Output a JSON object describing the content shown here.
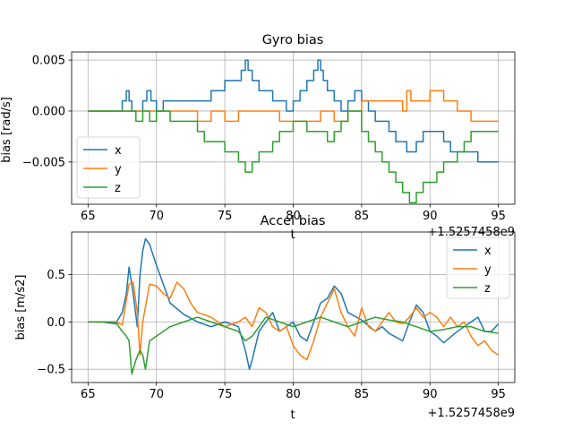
{
  "chart_data": [
    {
      "type": "line",
      "title": "Gyro bias",
      "xlabel": "t",
      "ylabel": "bias [rad/s]",
      "x_offset_label": "+1.5257458e9",
      "xlim": [
        63.8,
        96.2
      ],
      "ylim": [
        -0.00915,
        0.0058
      ],
      "xticks": [
        65,
        70,
        75,
        80,
        85,
        90,
        95
      ],
      "yticks": [
        -0.005,
        0.0,
        0.005
      ],
      "ytick_labels": [
        "−0.005",
        "0.000",
        "0.005"
      ],
      "grid": true,
      "legend_position": "lower-left",
      "series": [
        {
          "name": "x",
          "color": "#1f77b4",
          "step": true,
          "x": [
            65,
            67.5,
            67.8,
            68.0,
            68.2,
            68.6,
            69.0,
            69.3,
            69.6,
            70.0,
            70.5,
            71.0,
            72.0,
            73.0,
            74.0,
            75.0,
            75.8,
            76.2,
            76.5,
            76.7,
            77.0,
            77.5,
            78.0,
            78.5,
            79.0,
            79.5,
            80.0,
            80.5,
            81.0,
            81.5,
            81.8,
            82.0,
            82.2,
            82.5,
            83.0,
            83.5,
            84.0,
            84.5,
            85.0,
            85.5,
            86.0,
            86.5,
            87.0,
            87.5,
            88.0,
            88.3,
            88.6,
            89.0,
            89.5,
            90.0,
            90.5,
            91.0,
            91.5,
            92.0,
            92.5,
            93.0,
            93.5,
            94.0,
            94.5,
            95.0
          ],
          "y": [
            0,
            0.001,
            0.002,
            0.001,
            0,
            0,
            0.001,
            0.002,
            0.001,
            0,
            0.001,
            0.001,
            0.001,
            0.001,
            0.002,
            0.003,
            0.003,
            0.004,
            0.005,
            0.004,
            0.003,
            0.002,
            0.002,
            0.001,
            0.001,
            0,
            0.001,
            0.002,
            0.003,
            0.004,
            0.005,
            0.004,
            0.003,
            0.002,
            0.001,
            0,
            0.001,
            0.002,
            0.001,
            0,
            -0.001,
            -0.001,
            -0.002,
            -0.003,
            -0.003,
            -0.004,
            -0.004,
            -0.003,
            -0.002,
            -0.002,
            -0.002,
            -0.003,
            -0.004,
            -0.004,
            -0.004,
            -0.004,
            -0.005,
            -0.005,
            -0.005,
            -0.005
          ]
        },
        {
          "name": "y",
          "color": "#ff7f0e",
          "step": true,
          "x": [
            65,
            68.0,
            69.0,
            70.0,
            71.0,
            72.0,
            73.0,
            74.0,
            75.0,
            76.0,
            77.0,
            78.0,
            79.0,
            80.0,
            81.0,
            82.0,
            83.0,
            84.0,
            85.0,
            85.5,
            86.0,
            86.5,
            87.0,
            87.5,
            88.0,
            88.3,
            88.6,
            89.0,
            89.5,
            90.0,
            90.5,
            91.0,
            92.0,
            93.0,
            94.0,
            95.0
          ],
          "y": [
            0,
            0,
            0,
            0,
            0,
            0,
            -0.001,
            0,
            -0.001,
            0,
            0,
            0,
            -0.001,
            -0.001,
            -0.001,
            0,
            -0.001,
            0,
            0.001,
            0.001,
            0.001,
            0.001,
            0.001,
            0.001,
            0,
            0.002,
            0.001,
            0.001,
            0.001,
            0.002,
            0.002,
            0.001,
            0,
            -0.001,
            -0.001,
            -0.001
          ]
        },
        {
          "name": "z",
          "color": "#2ca02c",
          "step": true,
          "x": [
            65,
            68.0,
            68.5,
            69.0,
            69.5,
            70.0,
            71.0,
            72.0,
            73.0,
            73.5,
            74.0,
            74.5,
            75.0,
            75.5,
            76.0,
            76.5,
            77.0,
            77.5,
            78.0,
            78.5,
            79.0,
            79.5,
            80.0,
            81.0,
            82.0,
            82.5,
            83.0,
            83.5,
            84.0,
            84.5,
            85.0,
            85.5,
            86.0,
            86.5,
            87.0,
            87.5,
            88.0,
            88.5,
            89.0,
            89.5,
            90.0,
            90.5,
            91.0,
            91.5,
            92.0,
            92.5,
            93.0,
            93.5,
            94.0,
            94.5,
            95.0
          ],
          "y": [
            0,
            0,
            -0.001,
            0,
            -0.001,
            0,
            -0.001,
            -0.001,
            -0.002,
            -0.003,
            -0.003,
            -0.003,
            -0.004,
            -0.004,
            -0.005,
            -0.006,
            -0.005,
            -0.004,
            -0.004,
            -0.003,
            -0.002,
            -0.002,
            -0.001,
            -0.002,
            -0.002,
            -0.003,
            -0.002,
            -0.001,
            0,
            0,
            -0.002,
            -0.003,
            -0.004,
            -0.005,
            -0.006,
            -0.007,
            -0.008,
            -0.009,
            -0.008,
            -0.007,
            -0.007,
            -0.006,
            -0.005,
            -0.005,
            -0.004,
            -0.003,
            -0.002,
            -0.002,
            -0.002,
            -0.002,
            -0.002
          ]
        }
      ]
    },
    {
      "type": "line",
      "title": "Accel bias",
      "xlabel": "t",
      "ylabel": "bias [m/s2]",
      "x_offset_label": "+1.5257458e9",
      "xlim": [
        63.8,
        96.2
      ],
      "ylim": [
        -0.64,
        0.95
      ],
      "xticks": [
        65,
        70,
        75,
        80,
        85,
        90,
        95
      ],
      "yticks": [
        -0.5,
        0.0,
        0.5
      ],
      "ytick_labels": [
        "−0.5",
        "0.0",
        "0.5"
      ],
      "grid": true,
      "legend_position": "upper-right",
      "series": [
        {
          "name": "x",
          "color": "#1f77b4",
          "step": false,
          "x": [
            65,
            66,
            67,
            67.5,
            67.8,
            68.0,
            68.3,
            68.6,
            68.8,
            69.0,
            69.2,
            69.5,
            70.0,
            70.5,
            71.0,
            72.0,
            73.0,
            74.0,
            75.0,
            76.0,
            76.5,
            76.8,
            77.0,
            77.5,
            78.0,
            78.5,
            79.0,
            80.0,
            80.5,
            81.0,
            81.5,
            82.0,
            82.5,
            83.0,
            83.5,
            84.0,
            85.0,
            86.0,
            86.5,
            87.0,
            88.0,
            88.5,
            89.0,
            89.5,
            90.0,
            90.5,
            91.0,
            92.0,
            93.0,
            93.5,
            94.0,
            94.5,
            95.0
          ],
          "y": [
            0,
            0,
            -0.02,
            0.1,
            0.3,
            0.58,
            0.3,
            -0.05,
            0.5,
            0.75,
            0.88,
            0.82,
            0.6,
            0.4,
            0.2,
            0.08,
            0.0,
            -0.05,
            0.0,
            -0.05,
            -0.3,
            -0.5,
            -0.4,
            -0.1,
            0.0,
            0.1,
            -0.1,
            0.0,
            -0.15,
            -0.2,
            0.0,
            0.2,
            0.25,
            0.38,
            0.3,
            0.1,
            0.02,
            -0.1,
            -0.05,
            -0.12,
            -0.2,
            0.0,
            0.18,
            0.1,
            -0.1,
            -0.15,
            -0.22,
            -0.1,
            0.0,
            0.05,
            -0.1,
            -0.1,
            -0.02
          ]
        },
        {
          "name": "y",
          "color": "#ff7f0e",
          "step": false,
          "x": [
            65,
            66,
            67,
            67.5,
            68.0,
            68.3,
            68.6,
            68.8,
            69.0,
            69.5,
            70.0,
            70.5,
            71.0,
            71.5,
            72.0,
            72.5,
            73.0,
            74.0,
            75.0,
            76.0,
            76.5,
            77.0,
            77.5,
            78.0,
            78.5,
            79.0,
            79.5,
            80.0,
            80.5,
            81.0,
            81.5,
            82.0,
            82.5,
            83.0,
            83.5,
            84.0,
            84.5,
            85.0,
            85.5,
            86.0,
            86.5,
            87.0,
            87.5,
            88.0,
            88.5,
            89.0,
            89.5,
            90.0,
            90.5,
            91.0,
            91.5,
            92.0,
            92.5,
            93.0,
            93.5,
            94.0,
            94.5,
            95.0
          ],
          "y": [
            0,
            0,
            0.0,
            -0.03,
            0.4,
            0.42,
            0.1,
            -0.35,
            0.0,
            0.4,
            0.38,
            0.3,
            0.25,
            0.42,
            0.35,
            0.2,
            0.1,
            0.05,
            -0.05,
            0.0,
            0.05,
            -0.05,
            0.15,
            0.1,
            -0.05,
            -0.1,
            -0.05,
            -0.25,
            -0.35,
            -0.4,
            -0.2,
            0.05,
            0.2,
            0.35,
            0.1,
            -0.05,
            -0.15,
            0.15,
            -0.05,
            -0.1,
            0.0,
            0.1,
            0.0,
            -0.02,
            0.05,
            0.15,
            0.05,
            0.1,
            0.05,
            -0.05,
            0.05,
            -0.05,
            0.0,
            -0.15,
            -0.25,
            -0.2,
            -0.3,
            -0.35
          ]
        },
        {
          "name": "z",
          "color": "#2ca02c",
          "step": false,
          "x": [
            65,
            66,
            67,
            67.5,
            67.8,
            68.0,
            68.2,
            68.5,
            68.8,
            69.0,
            69.2,
            69.5,
            70.0,
            70.5,
            71.0,
            72.0,
            73.0,
            74.0,
            75.0,
            76.0,
            76.5,
            77.0,
            77.5,
            78.0,
            79.0,
            80.0,
            81.0,
            82.0,
            83.0,
            84.0,
            85.0,
            86.0,
            87.0,
            88.0,
            89.0,
            90.0,
            91.0,
            92.0,
            93.0,
            94.0,
            95.0
          ],
          "y": [
            0,
            0,
            0.0,
            -0.1,
            -0.15,
            -0.2,
            -0.55,
            -0.4,
            -0.3,
            -0.35,
            -0.5,
            -0.2,
            -0.15,
            -0.1,
            -0.05,
            0.0,
            0.05,
            0.0,
            -0.05,
            -0.1,
            -0.2,
            -0.15,
            -0.05,
            0.05,
            0.0,
            -0.05,
            0.0,
            0.05,
            0.0,
            -0.05,
            0.0,
            0.05,
            0.02,
            0.0,
            -0.05,
            -0.1,
            -0.08,
            -0.05,
            -0.05,
            -0.1,
            -0.12
          ]
        }
      ]
    }
  ]
}
